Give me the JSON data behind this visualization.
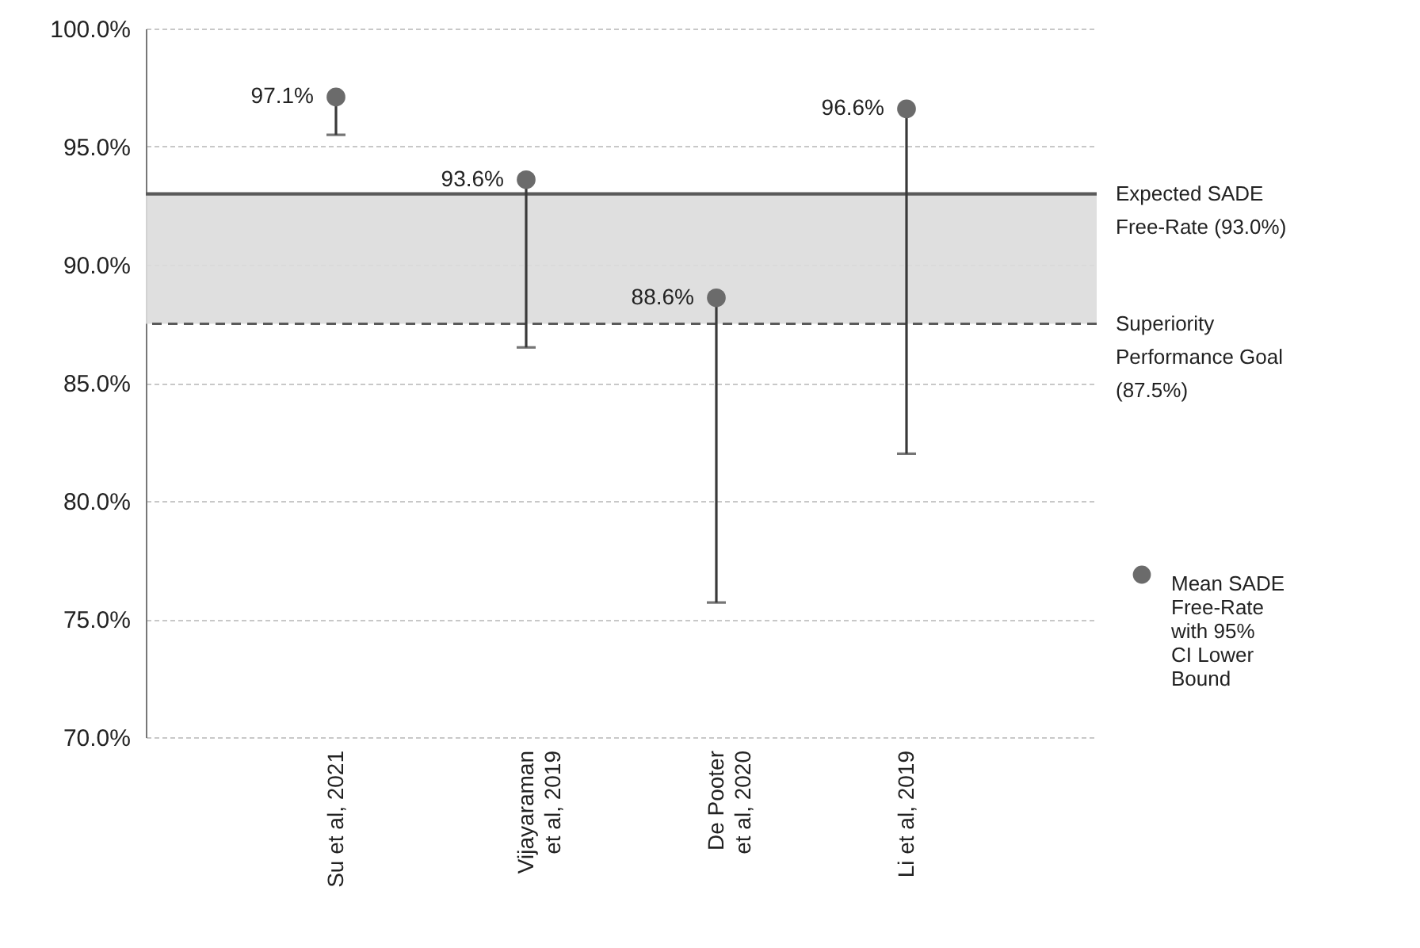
{
  "chart_data": {
    "type": "scatter",
    "categories": [
      "Su et al, 2021",
      "Vijayaraman\net al, 2019",
      "De Pooter\net al, 2020",
      "Li et al, 2019"
    ],
    "series": [
      {
        "name": "Mean SADE Free-Rate with 95% CI Lower Bound",
        "color": "#6b6b6b",
        "values": [
          97.1,
          93.6,
          88.6,
          96.6
        ],
        "errors": [
          [
            95.5,
            97.1
          ],
          [
            86.5,
            93.6
          ],
          [
            75.7,
            88.6
          ],
          [
            82.0,
            96.6
          ]
        ],
        "value_labels": [
          "97.1%",
          "93.6%",
          "88.6%",
          "96.6%"
        ]
      }
    ],
    "ylim": [
      70,
      100
    ],
    "yticks": [
      {
        "value": 70,
        "label": "70.0%"
      },
      {
        "value": 75,
        "label": "75.0%"
      },
      {
        "value": 80,
        "label": "80.0%"
      },
      {
        "value": 85,
        "label": "85.0%"
      },
      {
        "value": 90,
        "label": "90.0%"
      },
      {
        "value": 95,
        "label": "95.0%"
      },
      {
        "value": 100,
        "label": "100.0%"
      }
    ],
    "ref_lines": [
      {
        "axis": "y",
        "value": 93.0,
        "label": "Expected SADE Free-Rate (93.0%)",
        "color": "#5a5a5a",
        "line_style": "solid"
      },
      {
        "axis": "y",
        "value": 87.5,
        "label": "Superiority Performance Goal (87.5%)",
        "color": "#5a5a5a",
        "line_style": "dashed"
      }
    ],
    "bands": [
      {
        "axis": "y",
        "from": 87.5,
        "to": 93.0,
        "color": "#dcdcdc"
      }
    ],
    "grid": "y",
    "legend": "right",
    "marker": "circle"
  }
}
